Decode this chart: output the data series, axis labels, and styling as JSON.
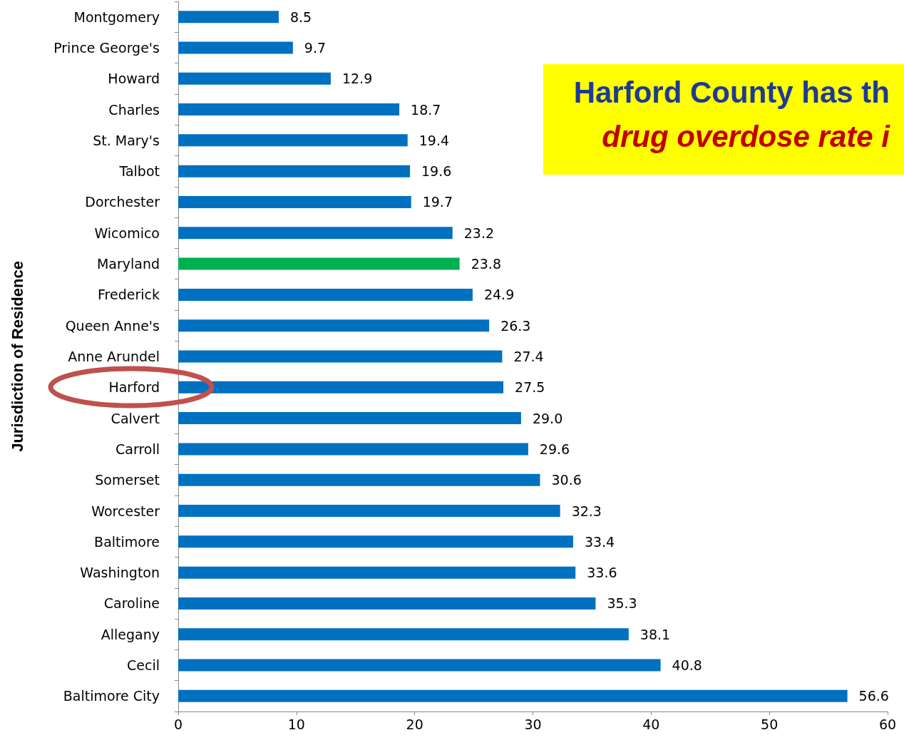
{
  "chart_data": {
    "type": "bar",
    "orientation": "horizontal",
    "ylabel": "Jurisdiction of Residence",
    "categories": [
      "Montgomery",
      "Prince George's",
      "Howard",
      "Charles",
      "St. Mary's",
      "Talbot",
      "Dorchester",
      "Wicomico",
      "Maryland",
      "Frederick",
      "Queen Anne's",
      "Anne Arundel",
      "Harford",
      "Calvert",
      "Carroll",
      "Somerset",
      "Worcester",
      "Baltimore",
      "Washington",
      "Caroline",
      "Allegany",
      "Cecil",
      "Baltimore City"
    ],
    "values": [
      8.5,
      9.7,
      12.9,
      18.7,
      19.4,
      19.6,
      19.7,
      23.2,
      23.8,
      24.9,
      26.3,
      27.4,
      27.5,
      29.0,
      29.6,
      30.6,
      32.3,
      33.4,
      33.6,
      35.3,
      38.1,
      40.8,
      56.6
    ],
    "value_labels": [
      "8.5",
      "9.7",
      "12.9",
      "18.7",
      "19.4",
      "19.6",
      "19.7",
      "23.2",
      "23.8",
      "24.9",
      "26.3",
      "27.4",
      "27.5",
      "29.0",
      "29.6",
      "30.6",
      "32.3",
      "33.4",
      "33.6",
      "35.3",
      "38.1",
      "40.8",
      "56.6"
    ],
    "colors": [
      "#0070c0",
      "#0070c0",
      "#0070c0",
      "#0070c0",
      "#0070c0",
      "#0070c0",
      "#0070c0",
      "#0070c0",
      "#00b050",
      "#0070c0",
      "#0070c0",
      "#0070c0",
      "#0070c0",
      "#0070c0",
      "#0070c0",
      "#0070c0",
      "#0070c0",
      "#0070c0",
      "#0070c0",
      "#0070c0",
      "#0070c0",
      "#0070c0",
      "#0070c0"
    ],
    "xlim": [
      0,
      60
    ],
    "xticks": [
      0,
      10,
      20,
      30,
      40,
      50,
      60
    ],
    "grid": false,
    "annotations": [
      "Harford County has th",
      "drug overdose rate i"
    ]
  }
}
